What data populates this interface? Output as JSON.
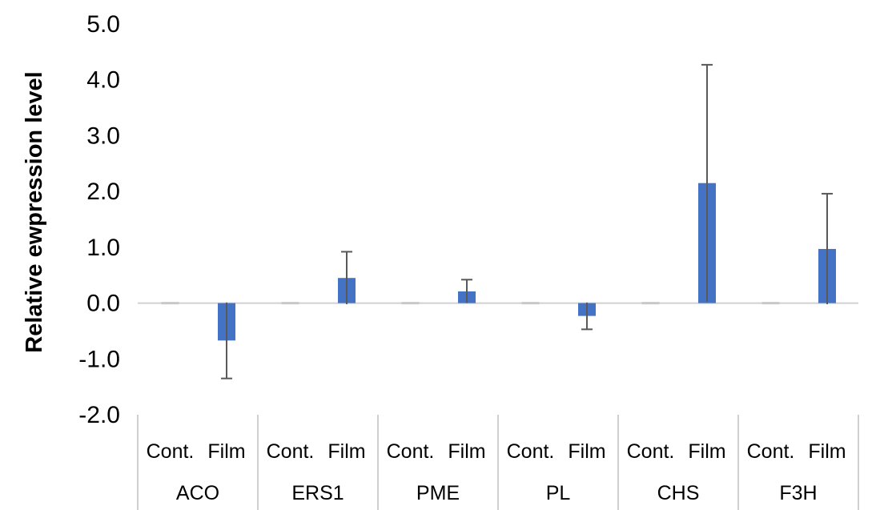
{
  "chart_data": {
    "type": "bar",
    "ylabel": "Relative ewpression level",
    "ylim": [
      -2.0,
      5.0
    ],
    "yticks": [
      "-2.0",
      "-1.0",
      "0.0",
      "1.0",
      "2.0",
      "3.0",
      "4.0",
      "5.0"
    ],
    "yticks_values": [
      -2,
      -1,
      0,
      1,
      2,
      3,
      4,
      5
    ],
    "bar_color": "#4472C4",
    "error_color": "#595959",
    "grid": false,
    "groups": [
      {
        "gene": "ACO",
        "treatments": [
          {
            "label": "Cont.",
            "value": 0.0,
            "error": 0
          },
          {
            "label": "Film",
            "value": -0.67,
            "error": 0.68
          }
        ]
      },
      {
        "gene": "ERS1",
        "treatments": [
          {
            "label": "Cont.",
            "value": 0.0,
            "error": 0
          },
          {
            "label": "Film",
            "value": 0.45,
            "error": 0.47
          }
        ]
      },
      {
        "gene": "PME",
        "treatments": [
          {
            "label": "Cont.",
            "value": 0.0,
            "error": 0
          },
          {
            "label": "Film",
            "value": 0.21,
            "error": 0.21
          }
        ]
      },
      {
        "gene": "PL",
        "treatments": [
          {
            "label": "Cont.",
            "value": 0.0,
            "error": 0
          },
          {
            "label": "Film",
            "value": -0.23,
            "error": 0.24
          }
        ]
      },
      {
        "gene": "CHS",
        "treatments": [
          {
            "label": "Cont.",
            "value": 0.0,
            "error": 0
          },
          {
            "label": "Film",
            "value": 2.15,
            "error": 2.12
          }
        ]
      },
      {
        "gene": "F3H",
        "treatments": [
          {
            "label": "Cont.",
            "value": 0.0,
            "error": 0
          },
          {
            "label": "Film",
            "value": 0.97,
            "error": 0.99
          }
        ]
      }
    ]
  }
}
